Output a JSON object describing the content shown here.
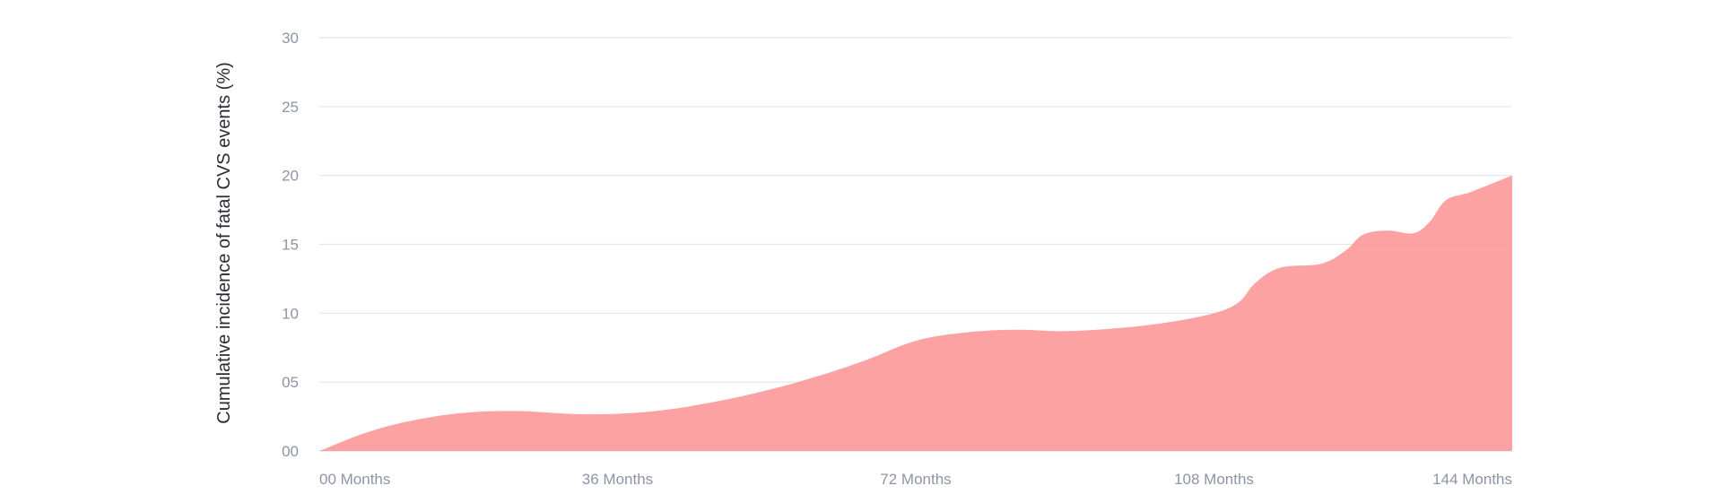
{
  "chart_data": {
    "type": "area",
    "title": "",
    "xlabel": "",
    "ylabel": "Cumulative incidence of fatal CVS events (%)",
    "x_unit": "Months",
    "xlim": [
      0,
      144
    ],
    "ylim": [
      0,
      30
    ],
    "x_ticks": [
      {
        "value": 0,
        "label": "00 Months"
      },
      {
        "value": 36,
        "label": "36 Months"
      },
      {
        "value": 72,
        "label": "72 Months"
      },
      {
        "value": 108,
        "label": "108 Months"
      },
      {
        "value": 144,
        "label": "144 Months"
      }
    ],
    "y_ticks": [
      {
        "value": 0,
        "label": "00"
      },
      {
        "value": 5,
        "label": "05"
      },
      {
        "value": 10,
        "label": "10"
      },
      {
        "value": 15,
        "label": "15"
      },
      {
        "value": 20,
        "label": "20"
      },
      {
        "value": 25,
        "label": "25"
      },
      {
        "value": 30,
        "label": "30"
      }
    ],
    "grid": true,
    "series": [
      {
        "color": "#fc9a9b",
        "points": [
          [
            0,
            0
          ],
          [
            6,
            1.4
          ],
          [
            12,
            2.3
          ],
          [
            18,
            2.8
          ],
          [
            24,
            2.9
          ],
          [
            30,
            2.7
          ],
          [
            36,
            2.7
          ],
          [
            42,
            3.0
          ],
          [
            48,
            3.6
          ],
          [
            54,
            4.4
          ],
          [
            60,
            5.4
          ],
          [
            66,
            6.6
          ],
          [
            72,
            8.0
          ],
          [
            78,
            8.6
          ],
          [
            84,
            8.8
          ],
          [
            90,
            8.7
          ],
          [
            96,
            8.9
          ],
          [
            102,
            9.3
          ],
          [
            108,
            10.0
          ],
          [
            111,
            10.8
          ],
          [
            113,
            12.2
          ],
          [
            116,
            13.3
          ],
          [
            121,
            13.6
          ],
          [
            124,
            14.6
          ],
          [
            126,
            15.7
          ],
          [
            129,
            16.0
          ],
          [
            132,
            15.8
          ],
          [
            134,
            16.6
          ],
          [
            136,
            18.2
          ],
          [
            139,
            18.8
          ],
          [
            144,
            20.0
          ]
        ]
      }
    ]
  }
}
